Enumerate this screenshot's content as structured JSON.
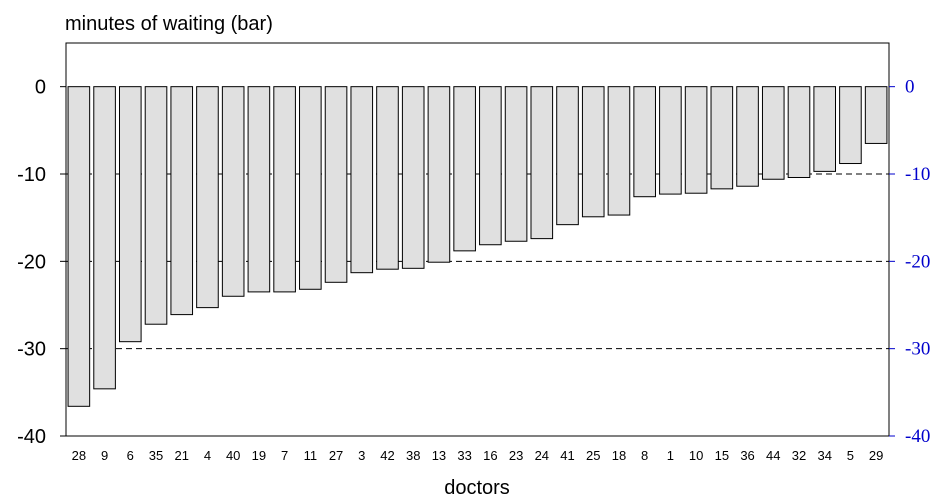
{
  "chart_data": {
    "type": "bar",
    "title": "minutes of waiting  (bar)",
    "xlabel": "doctors",
    "ylabel": "",
    "ylim": [
      -40,
      5
    ],
    "yticks": [
      0,
      -10,
      -20,
      -30,
      -40
    ],
    "ytick_labels_left": [
      "0",
      "-10",
      "-20",
      "-30",
      "-40"
    ],
    "ytick_labels_right": [
      "0",
      "-10",
      "-20",
      "-30",
      "-40"
    ],
    "grid": "dashed horizontal lines at -10, -20, -30, -40 behind bars",
    "colors": {
      "bar_fill": "#e0e0e0",
      "bar_stroke": "#000000",
      "right_axis": "#0000cc",
      "axes": "#000000"
    },
    "categories": [
      "28",
      "9",
      "6",
      "35",
      "21",
      "4",
      "40",
      "19",
      "7",
      "11",
      "27",
      "3",
      "42",
      "38",
      "13",
      "33",
      "16",
      "23",
      "24",
      "41",
      "25",
      "18",
      "8",
      "1",
      "10",
      "15",
      "36",
      "44",
      "32",
      "34",
      "5",
      "29"
    ],
    "values": [
      -36.6,
      -34.6,
      -29.2,
      -27.2,
      -26.1,
      -25.3,
      -24.0,
      -23.5,
      -23.5,
      -23.2,
      -22.4,
      -21.3,
      -20.9,
      -20.8,
      -20.1,
      -18.8,
      -18.1,
      -17.7,
      -17.4,
      -15.8,
      -14.9,
      -14.7,
      -12.6,
      -12.3,
      -12.2,
      -11.7,
      -11.4,
      -10.6,
      -10.4,
      -9.7,
      -8.8,
      -6.5
    ]
  }
}
